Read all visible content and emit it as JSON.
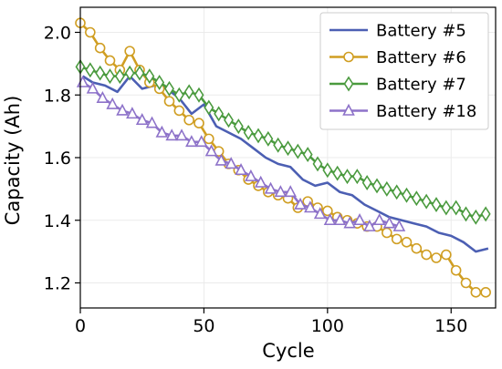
{
  "chart_data": {
    "type": "line",
    "title": "",
    "xlabel": "Cycle",
    "ylabel": "Capacity (Ah)",
    "xlim": [
      0,
      168
    ],
    "ylim": [
      1.12,
      2.08
    ],
    "xticks": [
      0,
      50,
      100,
      150
    ],
    "yticks": [
      1.2,
      1.4,
      1.6,
      1.8,
      2.0
    ],
    "grid": true,
    "legend_position": "top-right",
    "series": [
      {
        "name": "Battery #5",
        "color": "#4c5fb3",
        "marker": "none",
        "x": [
          1,
          5,
          10,
          15,
          20,
          25,
          30,
          35,
          40,
          45,
          50,
          55,
          60,
          65,
          70,
          75,
          80,
          85,
          90,
          95,
          100,
          105,
          110,
          115,
          120,
          125,
          130,
          135,
          140,
          145,
          150,
          155,
          160,
          165
        ],
        "y": [
          1.86,
          1.84,
          1.83,
          1.81,
          1.86,
          1.82,
          1.83,
          1.82,
          1.79,
          1.74,
          1.77,
          1.7,
          1.68,
          1.66,
          1.63,
          1.6,
          1.58,
          1.57,
          1.53,
          1.51,
          1.52,
          1.49,
          1.48,
          1.45,
          1.43,
          1.41,
          1.4,
          1.39,
          1.38,
          1.36,
          1.35,
          1.33,
          1.3,
          1.31
        ]
      },
      {
        "name": "Battery #6",
        "color": "#d09e22",
        "marker": "circle",
        "x": [
          0,
          4,
          8,
          12,
          16,
          20,
          24,
          28,
          32,
          36,
          40,
          44,
          48,
          52,
          56,
          60,
          64,
          68,
          72,
          76,
          80,
          84,
          88,
          92,
          96,
          100,
          104,
          108,
          112,
          116,
          120,
          124,
          128,
          132,
          136,
          140,
          144,
          148,
          152,
          156,
          160,
          164
        ],
        "y": [
          2.03,
          2.0,
          1.95,
          1.91,
          1.88,
          1.94,
          1.88,
          1.84,
          1.82,
          1.78,
          1.75,
          1.72,
          1.71,
          1.66,
          1.62,
          1.58,
          1.56,
          1.53,
          1.51,
          1.49,
          1.48,
          1.47,
          1.44,
          1.46,
          1.44,
          1.43,
          1.41,
          1.4,
          1.39,
          1.38,
          1.38,
          1.36,
          1.34,
          1.33,
          1.31,
          1.29,
          1.28,
          1.29,
          1.24,
          1.2,
          1.17,
          1.17
        ]
      },
      {
        "name": "Battery #7",
        "color": "#4a9a3e",
        "marker": "diamond",
        "x": [
          0,
          4,
          8,
          12,
          16,
          20,
          24,
          28,
          32,
          36,
          40,
          44,
          48,
          52,
          56,
          60,
          64,
          68,
          72,
          76,
          80,
          84,
          88,
          92,
          96,
          100,
          104,
          108,
          112,
          116,
          120,
          124,
          128,
          132,
          136,
          140,
          144,
          148,
          152,
          156,
          160,
          164
        ],
        "y": [
          1.89,
          1.88,
          1.87,
          1.86,
          1.86,
          1.87,
          1.87,
          1.86,
          1.84,
          1.82,
          1.8,
          1.81,
          1.8,
          1.76,
          1.74,
          1.72,
          1.7,
          1.68,
          1.67,
          1.66,
          1.64,
          1.63,
          1.62,
          1.61,
          1.58,
          1.56,
          1.55,
          1.54,
          1.54,
          1.52,
          1.51,
          1.5,
          1.49,
          1.48,
          1.47,
          1.46,
          1.45,
          1.44,
          1.44,
          1.42,
          1.41,
          1.42
        ]
      },
      {
        "name": "Battery #18",
        "color": "#8d72c9",
        "marker": "triangle",
        "x": [
          1,
          5,
          9,
          13,
          17,
          21,
          25,
          29,
          33,
          37,
          41,
          45,
          49,
          53,
          57,
          61,
          65,
          69,
          73,
          77,
          81,
          85,
          89,
          93,
          97,
          101,
          105,
          109,
          113,
          117,
          121,
          125,
          129
        ],
        "y": [
          1.84,
          1.82,
          1.79,
          1.77,
          1.75,
          1.74,
          1.72,
          1.71,
          1.68,
          1.67,
          1.67,
          1.65,
          1.65,
          1.62,
          1.59,
          1.58,
          1.56,
          1.54,
          1.52,
          1.5,
          1.49,
          1.49,
          1.45,
          1.44,
          1.42,
          1.4,
          1.4,
          1.39,
          1.4,
          1.38,
          1.4,
          1.39,
          1.38
        ]
      }
    ]
  }
}
